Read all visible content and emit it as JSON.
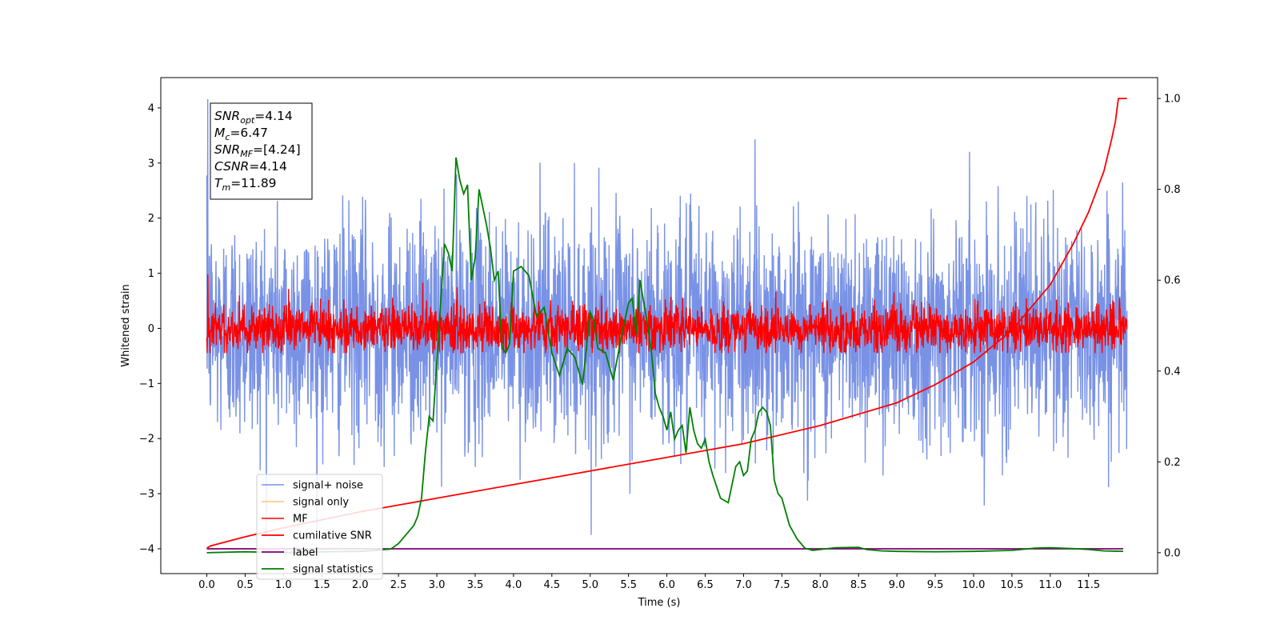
{
  "chart_data": {
    "type": "line",
    "title": "",
    "xlabel": "Time (s)",
    "ylabel": "Whitened strain",
    "y2label": "",
    "xlim": [
      -0.6,
      12.4
    ],
    "ylim": [
      -4.45,
      4.55
    ],
    "y2lim": [
      -0.046,
      1.046
    ],
    "xticks": [
      0.0,
      0.5,
      1.0,
      1.5,
      2.0,
      2.5,
      3.0,
      3.5,
      4.0,
      4.5,
      5.0,
      5.5,
      6.0,
      6.5,
      7.0,
      7.5,
      8.0,
      8.5,
      9.0,
      9.5,
      10.0,
      10.5,
      11.0,
      11.5
    ],
    "xtick_labels": [
      "0.0",
      "0.5",
      "1.0",
      "1.5",
      "2.0",
      "2.5",
      "3.0",
      "3.5",
      "4.0",
      "4.5",
      "5.0",
      "5.5",
      "6.0",
      "6.5",
      "7.0",
      "7.5",
      "8.0",
      "8.5",
      "9.0",
      "9.5",
      "10.0",
      "10.5",
      "11.0",
      "11.5"
    ],
    "yticks": [
      -4,
      -3,
      -2,
      -1,
      0,
      1,
      2,
      3,
      4
    ],
    "ytick_labels": [
      "−4",
      "−3",
      "−2",
      "−1",
      "0",
      "1",
      "2",
      "3",
      "4"
    ],
    "y2ticks": [
      0.0,
      0.2,
      0.4,
      0.6,
      0.8,
      1.0
    ],
    "y2tick_labels": [
      "0.0",
      "0.2",
      "0.4",
      "0.6",
      "0.8",
      "1.0"
    ],
    "grid": false,
    "legend_position": "lower-left",
    "annotation": {
      "lines": [
        {
          "base": "SNR",
          "sub": "opt",
          "rest": "=4.14"
        },
        {
          "base": "M",
          "sub": "c",
          "rest": "=6.47"
        },
        {
          "base": "SNR",
          "sub": "MF",
          "rest": "=[4.24]"
        },
        {
          "base": "CSNR",
          "sub": "",
          "rest": "=4.14"
        },
        {
          "base": "T",
          "sub": "m",
          "rest": "=11.89"
        }
      ]
    },
    "series": [
      {
        "name": "signal+ noise",
        "axis": "left",
        "color": "#7992e6",
        "kind": "noise",
        "x_range": [
          0.0,
          12.0
        ],
        "mean": 0.0,
        "std": 1.0,
        "min": -3.75,
        "max": 4.16
      },
      {
        "name": "signal only",
        "axis": "left",
        "color": "#f5c77a",
        "kind": "flat",
        "values_x": [
          0.0,
          11.95
        ],
        "values_y": [
          -4.0,
          -4.0
        ]
      },
      {
        "name": "MF",
        "axis": "left",
        "color": "#ff0000",
        "kind": "noise",
        "x_range": [
          0.0,
          12.0
        ],
        "mean": 0.0,
        "std": 0.22,
        "min": -0.45,
        "max": 0.98
      },
      {
        "name": "cumilative SNR",
        "axis": "right",
        "color": "#ff0000",
        "x": [
          0.0,
          0.05,
          0.5,
          1.0,
          2.0,
          3.0,
          4.0,
          5.0,
          6.0,
          7.0,
          8.0,
          9.0,
          9.5,
          10.0,
          10.5,
          11.0,
          11.3,
          11.5,
          11.7,
          11.8,
          11.85,
          11.88,
          11.89,
          12.0
        ],
        "y": [
          0.01,
          0.015,
          0.035,
          0.055,
          0.09,
          0.12,
          0.15,
          0.18,
          0.21,
          0.24,
          0.28,
          0.33,
          0.37,
          0.42,
          0.49,
          0.59,
          0.68,
          0.75,
          0.84,
          0.91,
          0.95,
          0.99,
          1.0,
          1.0
        ]
      },
      {
        "name": "label",
        "axis": "left",
        "color": "#800080",
        "x": [
          0.0,
          11.95
        ],
        "y": [
          -4.0,
          -4.0
        ]
      },
      {
        "name": "signal statistics",
        "axis": "right",
        "color": "#008000",
        "x": [
          0.0,
          0.5,
          1.0,
          1.5,
          2.0,
          2.2,
          2.4,
          2.5,
          2.6,
          2.7,
          2.75,
          2.8,
          2.85,
          2.9,
          2.95,
          3.0,
          3.05,
          3.1,
          3.15,
          3.2,
          3.25,
          3.3,
          3.35,
          3.4,
          3.45,
          3.5,
          3.55,
          3.6,
          3.65,
          3.7,
          3.75,
          3.8,
          3.85,
          3.9,
          3.95,
          4.0,
          4.1,
          4.2,
          4.3,
          4.4,
          4.5,
          4.6,
          4.7,
          4.8,
          4.9,
          5.0,
          5.05,
          5.1,
          5.2,
          5.3,
          5.4,
          5.5,
          5.55,
          5.6,
          5.65,
          5.7,
          5.75,
          5.8,
          5.85,
          5.9,
          5.95,
          6.0,
          6.05,
          6.1,
          6.15,
          6.2,
          6.25,
          6.3,
          6.35,
          6.4,
          6.45,
          6.5,
          6.55,
          6.6,
          6.7,
          6.8,
          6.9,
          6.95,
          7.0,
          7.05,
          7.1,
          7.15,
          7.2,
          7.25,
          7.3,
          7.35,
          7.4,
          7.45,
          7.5,
          7.55,
          7.6,
          7.7,
          7.8,
          7.9,
          8.0,
          8.2,
          8.5,
          8.6,
          8.8,
          9.0,
          9.5,
          10.0,
          10.5,
          10.8,
          11.0,
          11.3,
          11.5,
          11.7,
          11.95
        ],
        "y": [
          0.0,
          0.002,
          0.0,
          0.002,
          0.003,
          0.005,
          0.008,
          0.02,
          0.04,
          0.06,
          0.08,
          0.12,
          0.22,
          0.3,
          0.29,
          0.42,
          0.55,
          0.68,
          0.66,
          0.62,
          0.87,
          0.82,
          0.79,
          0.81,
          0.6,
          0.65,
          0.8,
          0.76,
          0.72,
          0.67,
          0.6,
          0.62,
          0.45,
          0.44,
          0.46,
          0.62,
          0.63,
          0.61,
          0.52,
          0.54,
          0.44,
          0.39,
          0.45,
          0.43,
          0.37,
          0.53,
          0.51,
          0.45,
          0.44,
          0.38,
          0.47,
          0.55,
          0.56,
          0.48,
          0.6,
          0.55,
          0.5,
          0.44,
          0.35,
          0.32,
          0.3,
          0.27,
          0.31,
          0.25,
          0.27,
          0.28,
          0.22,
          0.32,
          0.27,
          0.24,
          0.23,
          0.25,
          0.2,
          0.17,
          0.12,
          0.11,
          0.19,
          0.2,
          0.17,
          0.18,
          0.25,
          0.27,
          0.31,
          0.32,
          0.31,
          0.28,
          0.16,
          0.13,
          0.12,
          0.09,
          0.06,
          0.03,
          0.01,
          0.005,
          0.007,
          0.011,
          0.012,
          0.007,
          0.004,
          0.003,
          0.002,
          0.003,
          0.005,
          0.01,
          0.011,
          0.009,
          0.007,
          0.004,
          0.003
        ]
      }
    ]
  }
}
